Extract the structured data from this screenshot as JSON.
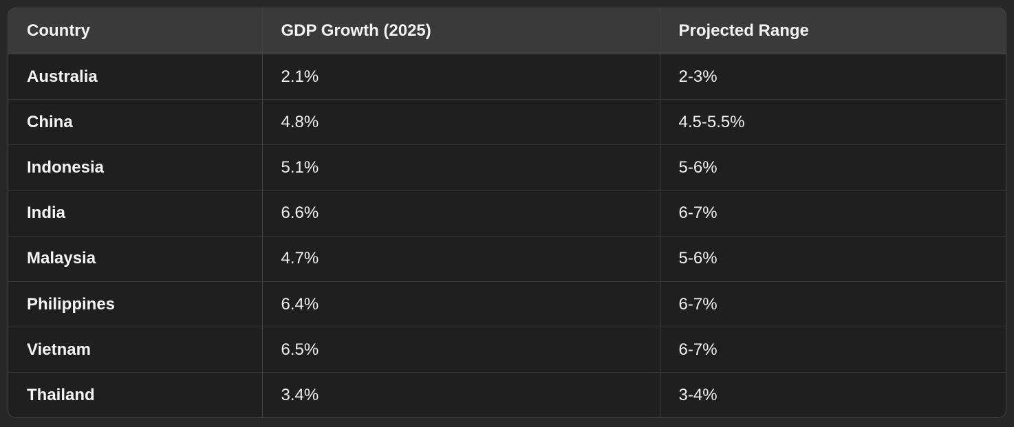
{
  "colors": {
    "page_background": "#272727",
    "header_background": "#3a3a3a",
    "row_background": "#1f1f1f",
    "border": "#414141",
    "text": "#f0f0f0"
  },
  "table": {
    "headers": {
      "country": "Country",
      "gdp_growth": "GDP Growth (2025)",
      "projected_range": "Projected Range"
    },
    "rows": [
      {
        "country": "Australia",
        "gdp_growth": "2.1%",
        "projected_range": "2-3%"
      },
      {
        "country": "China",
        "gdp_growth": "4.8%",
        "projected_range": "4.5-5.5%"
      },
      {
        "country": "Indonesia",
        "gdp_growth": "5.1%",
        "projected_range": "5-6%"
      },
      {
        "country": "India",
        "gdp_growth": "6.6%",
        "projected_range": "6-7%"
      },
      {
        "country": "Malaysia",
        "gdp_growth": "4.7%",
        "projected_range": "5-6%"
      },
      {
        "country": "Philippines",
        "gdp_growth": "6.4%",
        "projected_range": "6-7%"
      },
      {
        "country": "Vietnam",
        "gdp_growth": "6.5%",
        "projected_range": "6-7%"
      },
      {
        "country": "Thailand",
        "gdp_growth": "3.4%",
        "projected_range": "3-4%"
      }
    ]
  },
  "chart_data": {
    "type": "table",
    "title": "",
    "columns": [
      "Country",
      "GDP Growth (2025)",
      "Projected Range"
    ],
    "rows": [
      [
        "Australia",
        "2.1%",
        "2-3%"
      ],
      [
        "China",
        "4.8%",
        "4.5-5.5%"
      ],
      [
        "Indonesia",
        "5.1%",
        "5-6%"
      ],
      [
        "India",
        "6.6%",
        "6-7%"
      ],
      [
        "Malaysia",
        "4.7%",
        "5-6%"
      ],
      [
        "Philippines",
        "6.4%",
        "6-7%"
      ],
      [
        "Vietnam",
        "6.5%",
        "6-7%"
      ],
      [
        "Thailand",
        "3.4%",
        "3-4%"
      ]
    ],
    "gdp_growth_values_pct": [
      2.1,
      4.8,
      5.1,
      6.6,
      4.7,
      6.4,
      6.5,
      3.4
    ],
    "projected_range_low_pct": [
      2,
      4.5,
      5,
      6,
      5,
      6,
      6,
      3
    ],
    "projected_range_high_pct": [
      3,
      5.5,
      6,
      7,
      6,
      7,
      7,
      4
    ]
  }
}
